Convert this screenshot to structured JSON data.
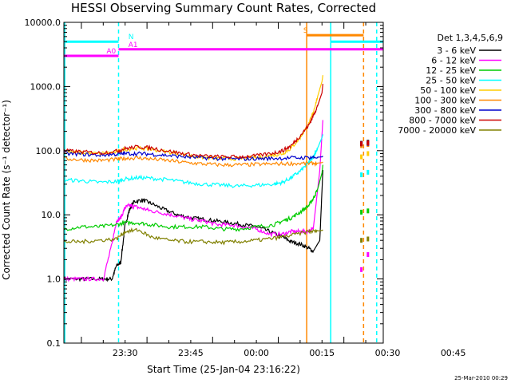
{
  "chart_data": {
    "type": "line",
    "title": "HESSI Observing Summary Count Rates, Corrected",
    "xlabel": "Start Time (25-Jan-04 23:16:22)",
    "ylabel": "Corrected Count Rate (s⁻¹ detector⁻¹)",
    "yscale": "log",
    "ylim": [
      0.1,
      10000
    ],
    "xlim_minutes": [
      -14,
      59
    ],
    "xtick_labels": [
      "23:30",
      "23:45",
      "00:00",
      "00:15",
      "00:30",
      "00:45"
    ],
    "ytick_labels": [
      "0.1",
      "1.0",
      "10.0",
      "100.0",
      "1000.0",
      "10000.0"
    ],
    "legend_title": "Det 1,3,4,5,6,9",
    "legend_position": "right",
    "footer": "25-Mar-2010 00:29",
    "series": [
      {
        "name": "3 - 6 keV",
        "color": "#000000",
        "x": [
          -14,
          -11,
          -8,
          -5,
          -3,
          -2,
          -1,
          0,
          1,
          2,
          4,
          6,
          9,
          12,
          15,
          18,
          21,
          24,
          27,
          30,
          33,
          36,
          38,
          40,
          42,
          43,
          44.5,
          45.2
        ],
        "y": [
          1.0,
          1.0,
          1.0,
          1.0,
          1.0,
          1.6,
          1.8,
          7,
          12,
          16,
          17,
          15,
          12,
          10,
          9,
          8.5,
          8,
          7.5,
          7,
          6.5,
          5.5,
          4.5,
          3.8,
          3.5,
          3.0,
          2.7,
          4,
          50
        ]
      },
      {
        "name": "6 - 12 keV",
        "color": "#ff00ff",
        "x": [
          -14,
          -11,
          -8,
          -5,
          -3,
          -2,
          -1,
          0,
          1,
          2,
          4,
          6,
          9,
          12,
          15,
          18,
          21,
          24,
          27,
          30,
          33,
          36,
          38,
          40,
          42,
          43,
          44.5,
          45.2
        ],
        "y": [
          1.0,
          1.0,
          1.0,
          1.0,
          3.5,
          8,
          9,
          13,
          14,
          13.5,
          12.5,
          11.5,
          10.5,
          9.5,
          8.5,
          8,
          7,
          7,
          6.5,
          6,
          5,
          5,
          5.5,
          5.5,
          5.5,
          6,
          50,
          300
        ]
      },
      {
        "name": "12 - 25 keV",
        "color": "#00cc00",
        "x": [
          -14,
          -10,
          -6,
          -2,
          0,
          3,
          6,
          10,
          14,
          18,
          22,
          26,
          30,
          34,
          36,
          38,
          40,
          42,
          43,
          44,
          45,
          45.2
        ],
        "y": [
          6,
          6.5,
          6.5,
          7,
          7.5,
          7.5,
          7,
          6.5,
          6.5,
          6.5,
          6,
          6,
          6.5,
          7,
          8,
          9,
          11,
          14,
          18,
          25,
          45,
          60
        ]
      },
      {
        "name": "25 - 50 keV",
        "color": "#00ffff",
        "x": [
          -14,
          -10,
          -6,
          -2,
          0,
          3,
          6,
          10,
          14,
          18,
          22,
          26,
          30,
          34,
          36,
          38,
          40,
          42,
          43,
          44,
          45,
          45.2
        ],
        "y": [
          35,
          34,
          32,
          33,
          36,
          38,
          37,
          35,
          32,
          30,
          29,
          28,
          29,
          30,
          32,
          38,
          48,
          65,
          80,
          110,
          160,
          180
        ]
      },
      {
        "name": "50 - 100 keV",
        "color": "#ffcc00",
        "x": [
          -14,
          -10,
          -6,
          -2,
          0,
          3,
          6,
          10,
          14,
          18,
          22,
          26,
          30,
          34,
          36,
          38,
          40,
          42,
          43,
          44,
          45,
          45.2
        ],
        "y": [
          95,
          93,
          90,
          95,
          105,
          110,
          105,
          95,
          85,
          78,
          75,
          75,
          78,
          85,
          90,
          110,
          160,
          260,
          400,
          700,
          1200,
          1500
        ]
      },
      {
        "name": "100 - 300 keV",
        "color": "#ff8800",
        "x": [
          -14,
          -10,
          -6,
          -2,
          0,
          3,
          6,
          10,
          14,
          18,
          22,
          26,
          30,
          34,
          38,
          42,
          44,
          45,
          45.2
        ],
        "y": [
          75,
          72,
          70,
          73,
          76,
          77,
          74,
          70,
          65,
          62,
          60,
          60,
          61,
          62,
          63,
          63,
          64,
          65,
          66
        ]
      },
      {
        "name": "300 - 800 keV",
        "color": "#0000cc",
        "x": [
          -14,
          -10,
          -6,
          -2,
          0,
          3,
          6,
          10,
          14,
          18,
          22,
          26,
          30,
          34,
          38,
          42,
          44,
          45,
          45.2
        ],
        "y": [
          90,
          88,
          85,
          88,
          90,
          90,
          88,
          84,
          80,
          77,
          75,
          74,
          75,
          76,
          77,
          78,
          79,
          80,
          82
        ]
      },
      {
        "name": "800 - 7000 keV",
        "color": "#cc0000",
        "x": [
          -14,
          -10,
          -6,
          -2,
          0,
          3,
          6,
          10,
          14,
          18,
          22,
          26,
          30,
          34,
          36,
          38,
          40,
          42,
          43,
          44,
          45,
          45.2
        ],
        "y": [
          100,
          96,
          92,
          98,
          108,
          115,
          110,
          98,
          88,
          82,
          80,
          80,
          83,
          92,
          100,
          120,
          170,
          250,
          350,
          500,
          800,
          1100
        ]
      },
      {
        "name": "7000 - 20000 keV",
        "color": "#808000",
        "x": [
          -14,
          -10,
          -6,
          -2,
          0,
          3,
          6,
          10,
          14,
          18,
          22,
          26,
          30,
          34,
          38,
          42,
          44,
          45,
          45.2
        ],
        "y": [
          3.8,
          3.8,
          4,
          4.2,
          5.5,
          5.8,
          4.5,
          4,
          3.8,
          3.8,
          3.7,
          3.8,
          4,
          4.3,
          4.8,
          5.5,
          5.6,
          5.7,
          5.8
        ]
      }
    ],
    "post_gap_points": [
      {
        "series": "3 - 6 keV",
        "x": [
          54,
          55.5
        ],
        "y": [
          130,
          135
        ]
      },
      {
        "series": "6 - 12 keV",
        "x": [
          54,
          55.5
        ],
        "y": [
          1.4,
          2.4
        ]
      },
      {
        "series": "12 - 25 keV",
        "x": [
          54,
          55.5
        ],
        "y": [
          11,
          11.5
        ]
      },
      {
        "series": "25 - 50 keV",
        "x": [
          54,
          55.5
        ],
        "y": [
          42,
          46
        ]
      },
      {
        "series": "50 - 100 keV",
        "x": [
          54,
          55.5
        ],
        "y": [
          80,
          90
        ]
      },
      {
        "series": "100 - 300 keV",
        "x": [
          54,
          55.5
        ],
        "y": [
          120,
          125
        ]
      },
      {
        "series": "300 - 800 keV",
        "x": [
          54,
          55.5
        ],
        "y": [
          128,
          130
        ]
      },
      {
        "series": "800 - 7000 keV",
        "x": [
          54,
          55.5
        ],
        "y": [
          128,
          132
        ]
      },
      {
        "series": "7000 - 20000 keV",
        "x": [
          54,
          55.5
        ],
        "y": [
          4,
          4.2
        ]
      }
    ],
    "flag_bars": [
      {
        "label": "N",
        "color": "#00ffff",
        "value": 5000,
        "segments": [
          [
            -14,
            -1.5
          ],
          [
            47,
            59
          ]
        ],
        "label_x": 0
      },
      {
        "label": "A0",
        "color": "#ff00ff",
        "value": 3000,
        "segments": [
          [
            -14,
            -1.5
          ]
        ],
        "label_x": -5
      },
      {
        "label": "A1",
        "color": "#ff00ff",
        "value": 3800,
        "segments": [
          [
            -1.5,
            59
          ]
        ],
        "label_x": 0
      },
      {
        "label": "S",
        "color": "#ff8800",
        "value": 6300,
        "segments": [
          [
            41.5,
            54.5
          ]
        ],
        "label_x": 40
      }
    ],
    "vertical_markers": [
      {
        "x": -13.8,
        "color": "#00ffff",
        "style": "solid"
      },
      {
        "x": -1.5,
        "color": "#00ffff",
        "style": "dashed"
      },
      {
        "x": 41.5,
        "color": "#ff8800",
        "style": "solid"
      },
      {
        "x": 47,
        "color": "#00ffff",
        "style": "solid"
      },
      {
        "x": 54.5,
        "color": "#ff8800",
        "style": "dashed"
      },
      {
        "x": 57.5,
        "color": "#00ffff",
        "style": "dashed"
      }
    ]
  }
}
